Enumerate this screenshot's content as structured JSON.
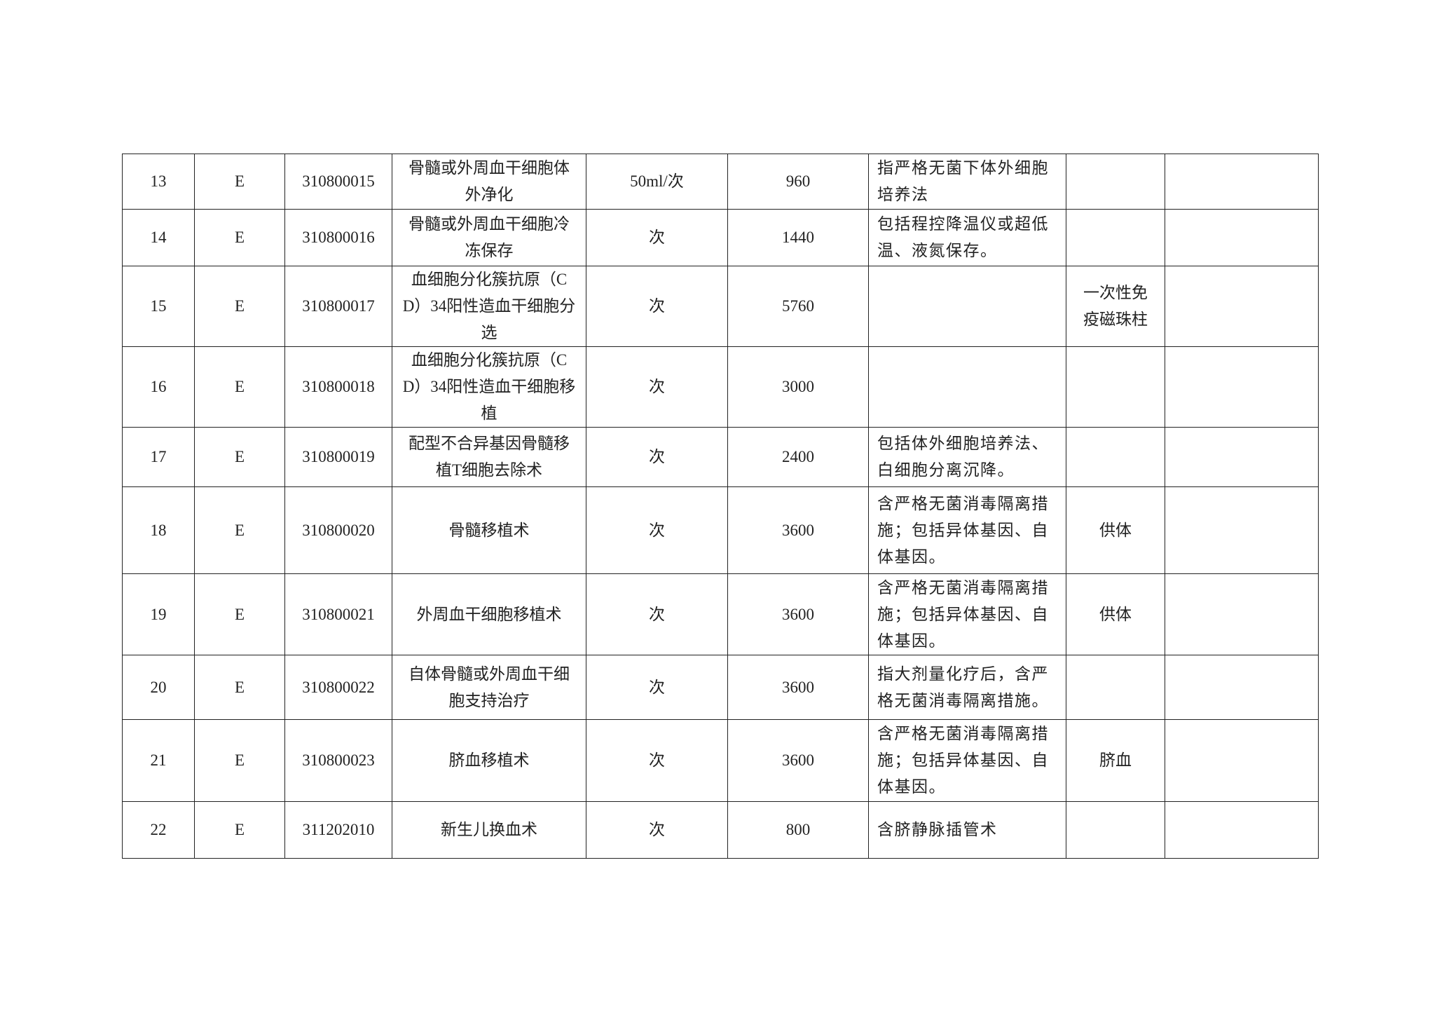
{
  "rows": [
    {
      "no": "13",
      "cls": "E",
      "code": "310800015",
      "name": "骨髓或外周血干细胞体外净化",
      "unit": "50ml/次",
      "price": "960",
      "desc": "指严格无菌下体外细胞培养法",
      "excl": "",
      "note": ""
    },
    {
      "no": "14",
      "cls": "E",
      "code": "310800016",
      "name": "骨髓或外周血干细胞冷冻保存",
      "unit": "次",
      "price": "1440",
      "desc": "包括程控降温仪或超低温、液氮保存。",
      "excl": "",
      "note": ""
    },
    {
      "no": "15",
      "cls": "E",
      "code": "310800017",
      "name": "血细胞分化簇抗原（CD）34阳性造血干细胞分选",
      "unit": "次",
      "price": "5760",
      "desc": "",
      "excl": "一次性免疫磁珠柱",
      "note": ""
    },
    {
      "no": "16",
      "cls": "E",
      "code": "310800018",
      "name": "血细胞分化簇抗原（CD）34阳性造血干细胞移植",
      "unit": "次",
      "price": "3000",
      "desc": "",
      "excl": "",
      "note": ""
    },
    {
      "no": "17",
      "cls": "E",
      "code": "310800019",
      "name": "配型不合异基因骨髓移植T细胞去除术",
      "unit": "次",
      "price": "2400",
      "desc": "包括体外细胞培养法、白细胞分离沉降。",
      "excl": "",
      "note": ""
    },
    {
      "no": "18",
      "cls": "E",
      "code": "310800020",
      "name": "骨髓移植术",
      "unit": "次",
      "price": "3600",
      "desc": "含严格无菌消毒隔离措施；包括异体基因、自体基因。",
      "excl": "供体",
      "note": ""
    },
    {
      "no": "19",
      "cls": "E",
      "code": "310800021",
      "name": "外周血干细胞移植术",
      "unit": "次",
      "price": "3600",
      "desc": "含严格无菌消毒隔离措施；包括异体基因、自体基因。",
      "excl": "供体",
      "note": ""
    },
    {
      "no": "20",
      "cls": "E",
      "code": "310800022",
      "name": "自体骨髓或外周血干细胞支持治疗",
      "unit": "次",
      "price": "3600",
      "desc": "指大剂量化疗后，含严格无菌消毒隔离措施。",
      "excl": "",
      "note": ""
    },
    {
      "no": "21",
      "cls": "E",
      "code": "310800023",
      "name": "脐血移植术",
      "unit": "次",
      "price": "3600",
      "desc": "含严格无菌消毒隔离措施；包括异体基因、自体基因。",
      "excl": "脐血",
      "note": ""
    },
    {
      "no": "22",
      "cls": "E",
      "code": "311202010",
      "name": "新生儿换血术",
      "unit": "次",
      "price": "800",
      "desc": "含脐静脉插管术",
      "excl": "",
      "note": ""
    }
  ]
}
